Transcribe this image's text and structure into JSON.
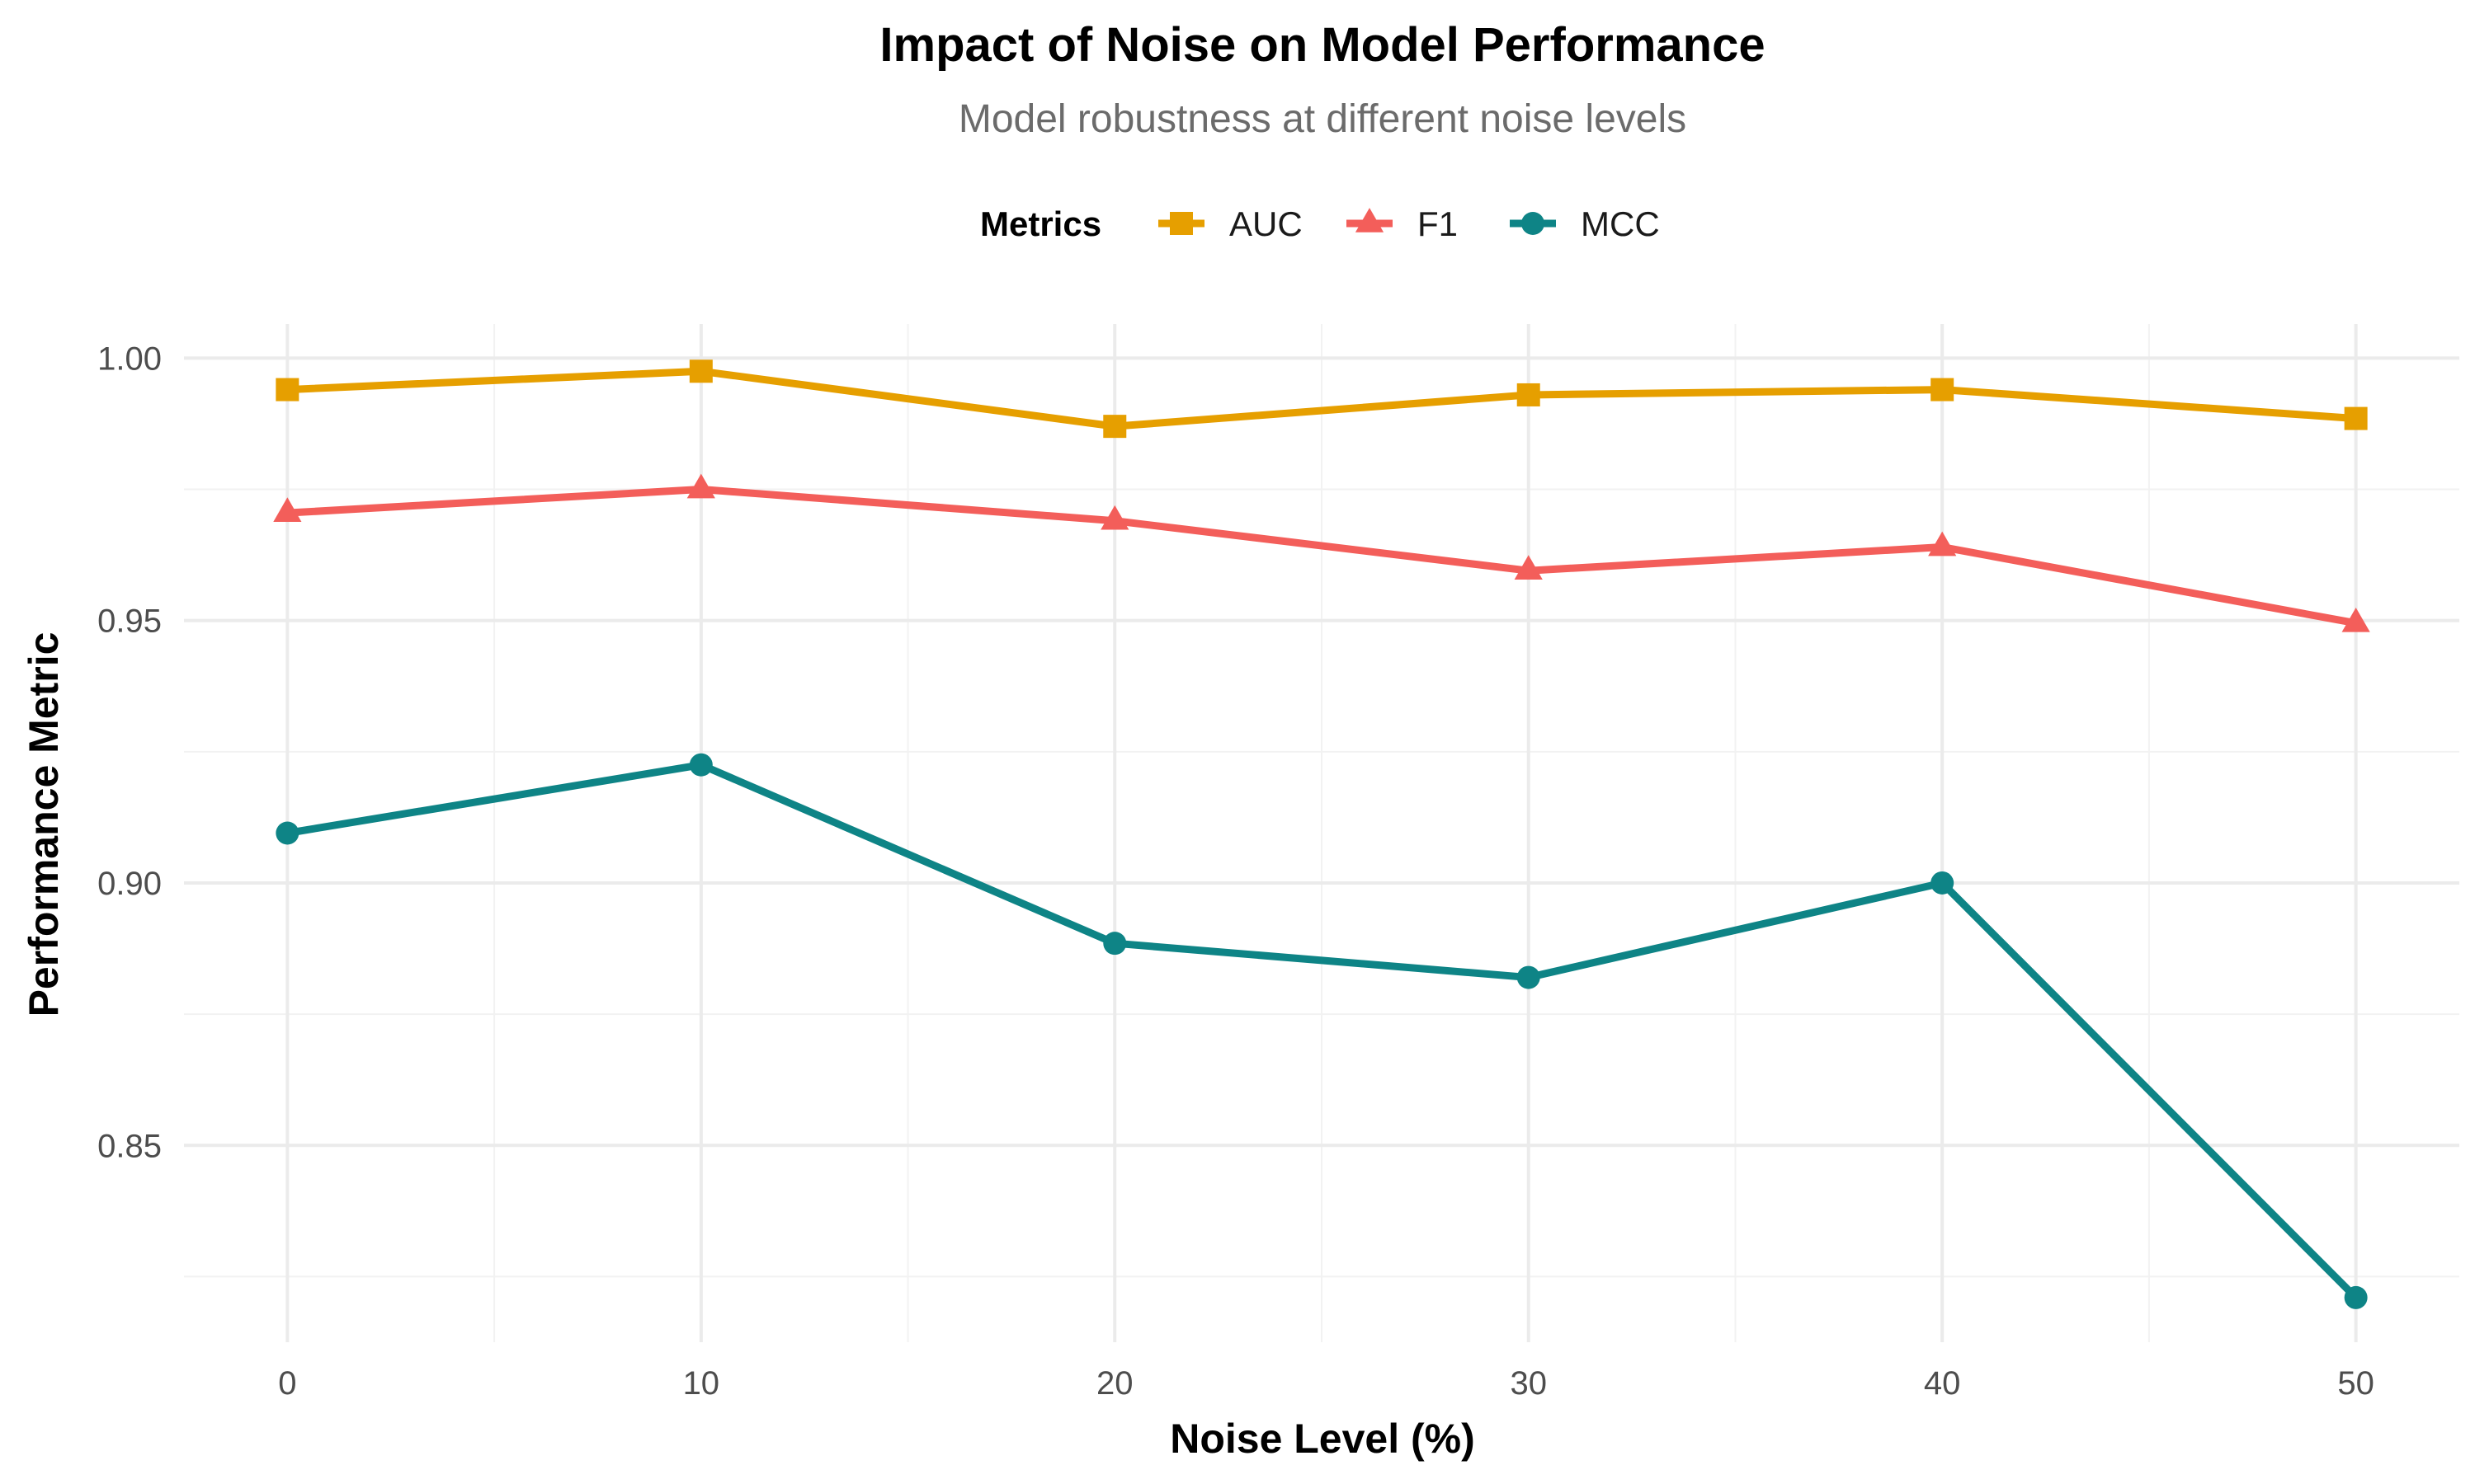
{
  "chart_data": {
    "type": "line",
    "title": "Impact of Noise on Model Performance",
    "subtitle": "Model robustness at different noise levels",
    "xlabel": "Noise Level (%)",
    "ylabel": "Performance Metric",
    "x": [
      0,
      10,
      20,
      30,
      40,
      50
    ],
    "x_ticks": [
      "0",
      "10",
      "20",
      "30",
      "40",
      "50"
    ],
    "y_ticks": [
      "0.85",
      "0.90",
      "0.95",
      "1.00"
    ],
    "xlim": [
      -2.5,
      52.5
    ],
    "ylim": [
      0.8125,
      1.0065
    ],
    "grid": true,
    "legend": {
      "title": "Metrics",
      "position": "top"
    },
    "series": [
      {
        "name": "AUC",
        "color": "#E69F00",
        "marker": "square",
        "values": [
          0.994,
          0.9975,
          0.987,
          0.993,
          0.994,
          0.9885
        ]
      },
      {
        "name": "F1",
        "color": "#F35E5A",
        "marker": "triangle",
        "values": [
          0.9705,
          0.975,
          0.969,
          0.9595,
          0.964,
          0.9495
        ]
      },
      {
        "name": "MCC",
        "color": "#0E8486",
        "marker": "circle",
        "values": [
          0.9095,
          0.9225,
          0.8885,
          0.882,
          0.9,
          0.821
        ]
      }
    ]
  }
}
